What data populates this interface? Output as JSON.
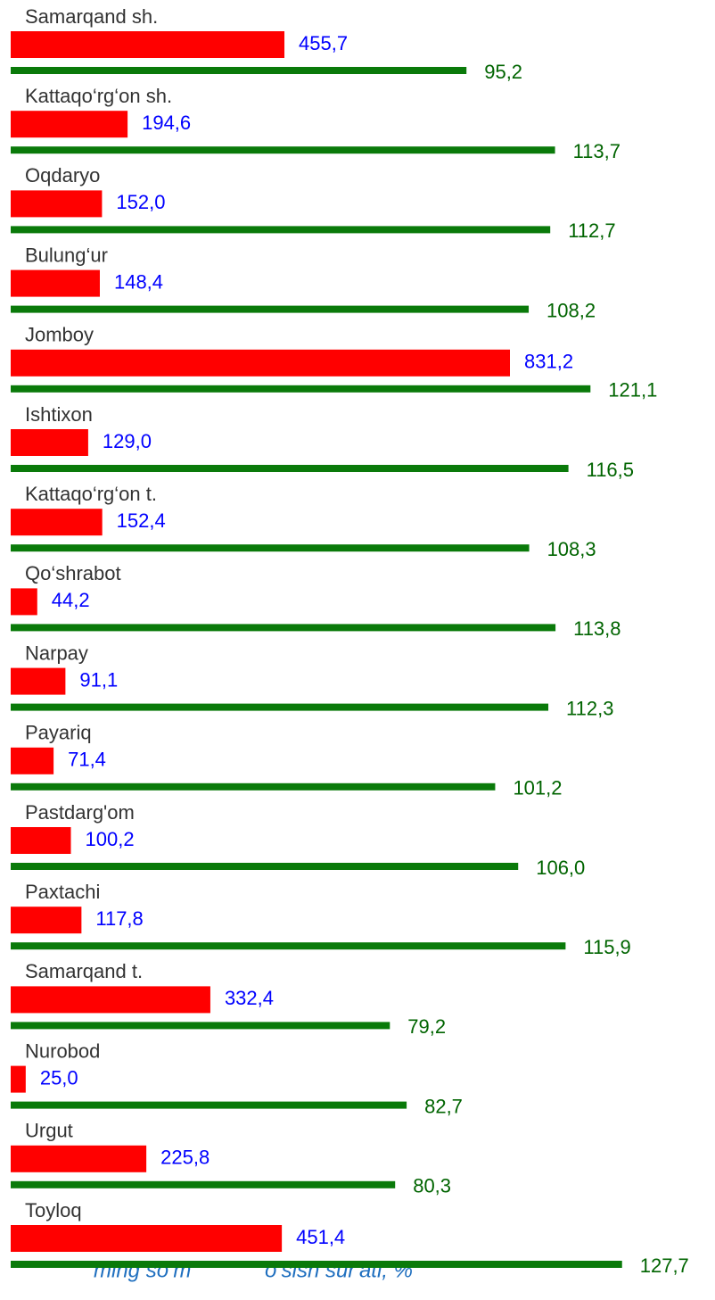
{
  "chart_data": {
    "type": "paired-bar",
    "categories": [
      "Samarqand sh.",
      "Kattaqo‘rg‘on sh.",
      "Oqdaryo",
      "Bulung‘ur",
      "Jomboy",
      "Ishtixon",
      "Kattaqo‘rg‘on t.",
      "Qo‘shrabot",
      "Narpay",
      "Payariq",
      "Pastdarg'om",
      "Paxtachi",
      "Samarqand t.",
      "Nurobod",
      "Urgut",
      "Toyloq"
    ],
    "series": [
      {
        "name": "ming so‘m",
        "color": "#ff0000",
        "label_color": "#0000ff",
        "values": [
          455.7,
          194.6,
          152.0,
          148.4,
          831.2,
          129.0,
          152.4,
          44.2,
          91.1,
          71.4,
          100.2,
          117.8,
          332.4,
          25.0,
          225.8,
          451.4
        ],
        "value_labels": [
          "455,7",
          "194,6",
          "152,0",
          "148,4",
          "831,2",
          "129,0",
          "152,4",
          "44,2",
          "91,1",
          "71,4",
          "100,2",
          "117,8",
          "332,4",
          "25,0",
          "225,8",
          "451,4"
        ]
      },
      {
        "name": "o‘sish sur'ati, %",
        "color": "#0a7a0a",
        "label_color": "#006400",
        "values": [
          95.2,
          113.7,
          112.7,
          108.2,
          121.1,
          116.5,
          108.3,
          113.8,
          112.3,
          101.2,
          106.0,
          115.9,
          79.2,
          82.7,
          80.3,
          127.7
        ],
        "value_labels": [
          "95,2",
          "113,7",
          "112,7",
          "108,2",
          "121,1",
          "116,5",
          "108,3",
          "113,8",
          "112,3",
          "101,2",
          "106,0",
          "115,9",
          "79,2",
          "82,7",
          "80,3",
          "127,7"
        ]
      }
    ]
  }
}
